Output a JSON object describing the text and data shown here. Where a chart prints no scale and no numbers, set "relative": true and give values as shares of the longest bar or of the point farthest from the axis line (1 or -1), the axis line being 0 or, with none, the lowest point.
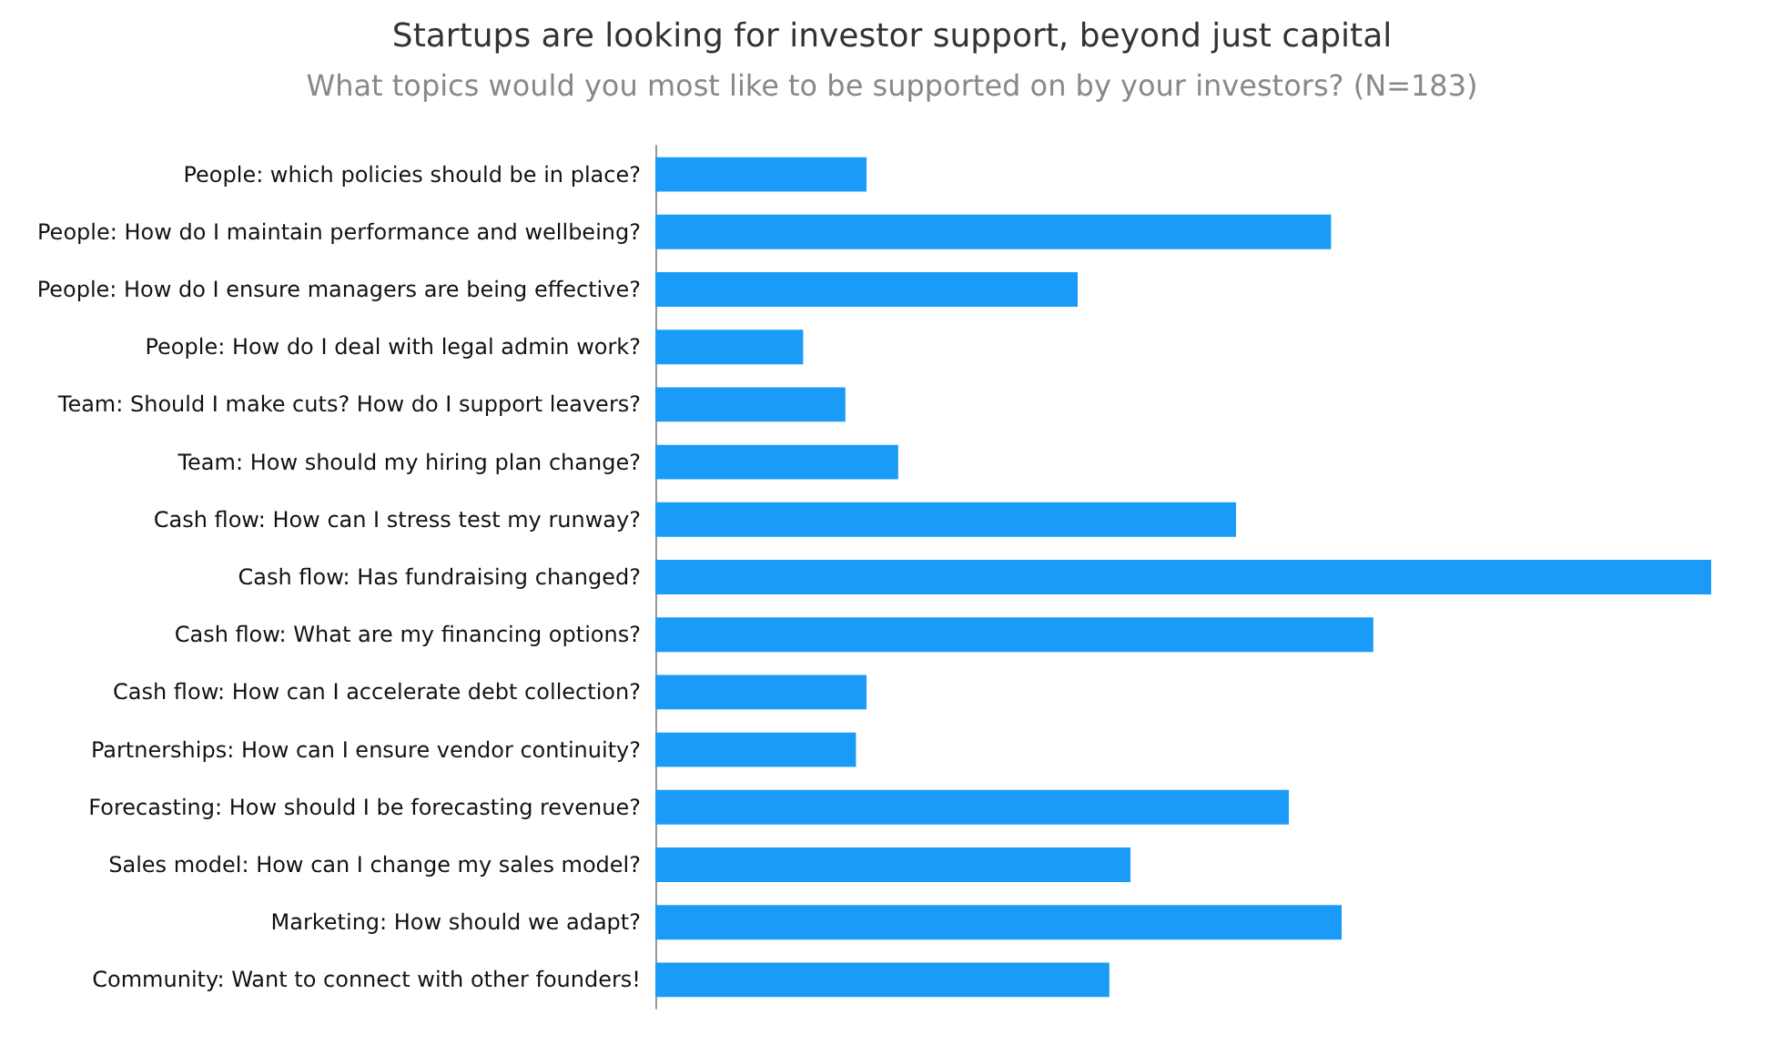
{
  "chart_data": {
    "type": "bar",
    "orientation": "horizontal",
    "relative": true,
    "title": "Startups are looking for investor support, beyond just capital",
    "subtitle": "What topics would you most like to be supported on by your investors? (N=183)",
    "color": "#1a9bf7",
    "categories": [
      "People: which policies should be in place?",
      "People: How do I maintain performance and wellbeing?",
      "People: How do I ensure managers are being effective?",
      "People: How do I deal with legal admin work?",
      "Team: Should I make cuts? How do I support leavers?",
      "Team: How should my hiring plan change?",
      "Cash flow: How can I stress test my runway?",
      "Cash flow: Has fundraising changed?",
      "Cash flow: What are my financing options?",
      "Cash flow: How can I accelerate debt collection?",
      "Partnerships: How can I ensure vendor continuity?",
      "Forecasting: How should I be forecasting revenue?",
      "Sales model: How can I change my sales model?",
      "Marketing: How should we adapt?",
      "Community: Want to connect with other founders!"
    ],
    "values": [
      0.2,
      0.64,
      0.4,
      0.14,
      0.18,
      0.23,
      0.55,
      1,
      0.68,
      0.2,
      0.19,
      0.6,
      0.45,
      0.65,
      0.43
    ]
  }
}
